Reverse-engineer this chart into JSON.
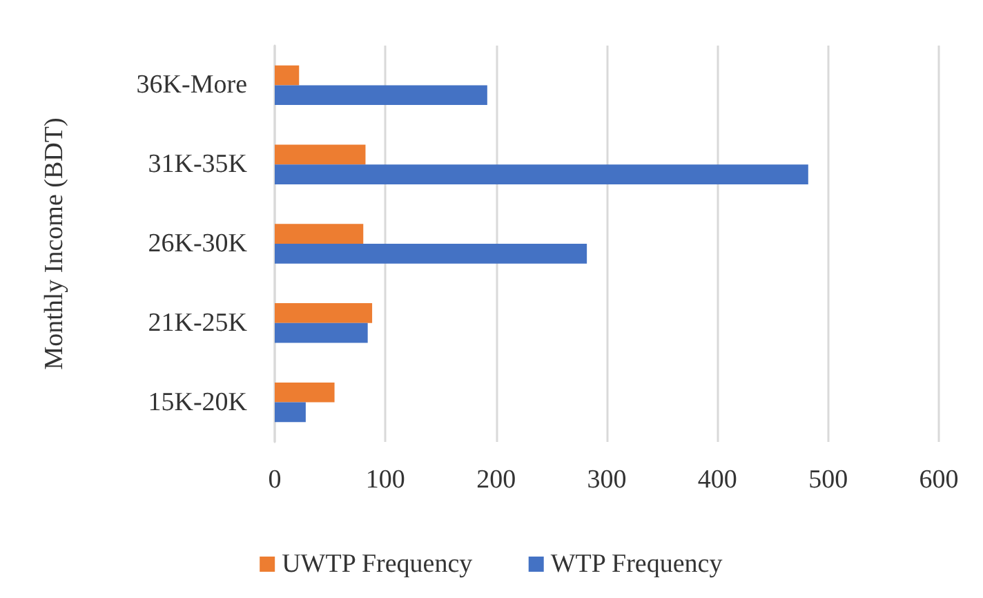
{
  "chart_data": {
    "type": "bar",
    "orientation": "horizontal",
    "ylabel": "Monthly Income (BDT)",
    "categories": [
      "36K-More",
      "31K-35K",
      "26K-30K",
      "21K-25K",
      "15K-20K"
    ],
    "series": [
      {
        "name": "UWTP Frequency",
        "color": "#ed7d31",
        "values": [
          22,
          82,
          80,
          88,
          54
        ]
      },
      {
        "name": "WTP Frequency",
        "color": "#4472c4",
        "values": [
          192,
          482,
          282,
          84,
          28
        ]
      }
    ],
    "xlim": [
      0,
      600
    ],
    "xticks": [
      0,
      100,
      200,
      300,
      400,
      500,
      600
    ],
    "grid": "x",
    "legend": "bottom"
  }
}
